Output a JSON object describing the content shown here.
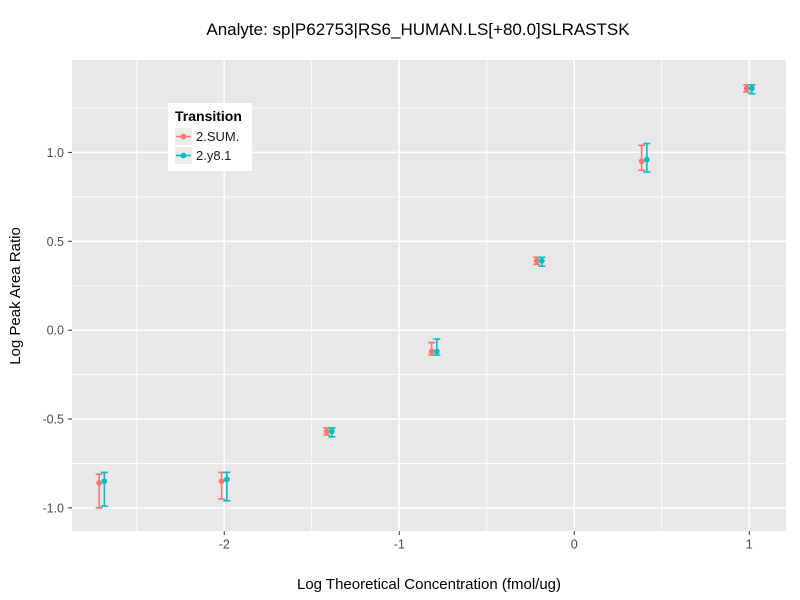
{
  "chart_data": {
    "type": "scatter",
    "title": "Analyte: sp|P62753|RS6_HUMAN.LS[+80.0]SLRASTSK",
    "xlabel": "Log Theoretical Concentration (fmol/ug)",
    "ylabel": "Log Peak Area Ratio",
    "xlim": [
      -2.87,
      1.21
    ],
    "ylim": [
      -1.13,
      1.52
    ],
    "grid": true,
    "x_ticks": [
      {
        "v": -2,
        "label": "-2"
      },
      {
        "v": -1,
        "label": "-1"
      },
      {
        "v": 0,
        "label": "0"
      },
      {
        "v": 1,
        "label": "1"
      }
    ],
    "y_ticks": [
      {
        "v": 1.0,
        "label": "1.0"
      },
      {
        "v": 0.5,
        "label": "0.5"
      },
      {
        "v": 0.0,
        "label": "0.0"
      },
      {
        "v": -0.5,
        "label": "-0.5"
      },
      {
        "v": -1.0,
        "label": "-1.0"
      }
    ],
    "x_minor_ticks": [
      -2.5,
      -1.5,
      -0.5,
      0.5
    ],
    "y_minor_ticks": [
      1.25,
      0.75,
      0.25,
      -0.25,
      -0.75
    ],
    "legend": {
      "title": "Transition",
      "position": "inside-top-left"
    },
    "colors": {
      "panel_bg": "#E8E8E8",
      "gridline": "#FFFFFF",
      "tick_mark": "#333333",
      "tick_label": "#4D4D4D",
      "title_text": "#000000",
      "legend_bg": "#FFFFFF",
      "legend_key_bg": "#ECECEC",
      "series_1": "#F8766D",
      "series_2": "#00BFC4"
    },
    "series": [
      {
        "name": "2.SUM.",
        "color": "#F8766D",
        "points": [
          {
            "x": -2.7,
            "y": -0.86,
            "ymin": -1.0,
            "ymax": -0.81
          },
          {
            "x": -2.0,
            "y": -0.85,
            "ymin": -0.95,
            "ymax": -0.8
          },
          {
            "x": -1.4,
            "y": -0.57,
            "ymin": -0.59,
            "ymax": -0.55
          },
          {
            "x": -0.8,
            "y": -0.12,
            "ymin": -0.14,
            "ymax": -0.07
          },
          {
            "x": -0.2,
            "y": 0.39,
            "ymin": 0.37,
            "ymax": 0.41
          },
          {
            "x": 0.4,
            "y": 0.95,
            "ymin": 0.9,
            "ymax": 1.04
          },
          {
            "x": 1.0,
            "y": 1.36,
            "ymin": 1.34,
            "ymax": 1.38
          }
        ]
      },
      {
        "name": "2.y8.1",
        "color": "#00BFC4",
        "points": [
          {
            "x": -2.7,
            "y": -0.85,
            "ymin": -0.99,
            "ymax": -0.8
          },
          {
            "x": -2.0,
            "y": -0.84,
            "ymin": -0.96,
            "ymax": -0.8
          },
          {
            "x": -1.4,
            "y": -0.57,
            "ymin": -0.6,
            "ymax": -0.55
          },
          {
            "x": -0.8,
            "y": -0.12,
            "ymin": -0.14,
            "ymax": -0.05
          },
          {
            "x": -0.2,
            "y": 0.39,
            "ymin": 0.36,
            "ymax": 0.41
          },
          {
            "x": 0.4,
            "y": 0.96,
            "ymin": 0.89,
            "ymax": 1.05
          },
          {
            "x": 1.0,
            "y": 1.36,
            "ymin": 1.33,
            "ymax": 1.38
          }
        ]
      }
    ]
  }
}
